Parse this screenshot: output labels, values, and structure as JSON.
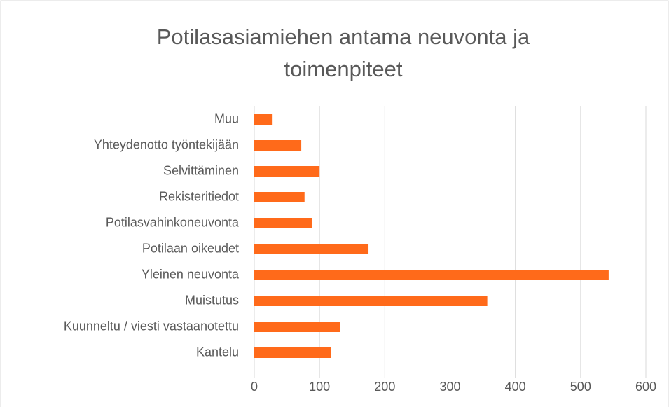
{
  "chart_data": {
    "type": "barh",
    "title": "Potilasasiamiehen antama neuvonta ja toimenpiteet",
    "categories": [
      "Muu",
      "Yhteydenotto työntekijään",
      "Selvittäminen",
      "Rekisteritiedot",
      "Potilasvahinkoneuvonta",
      "Potilaan oikeudet",
      "Yleinen neuvonta",
      "Muistutus",
      "Kuunneltu / viesti vastaanotettu",
      "Kantelu"
    ],
    "values": [
      27,
      72,
      100,
      77,
      88,
      175,
      543,
      357,
      132,
      118
    ],
    "color": "#ff6a1a",
    "xlim": [
      0,
      600
    ],
    "xticks": [
      0,
      100,
      200,
      300,
      400,
      500,
      600
    ],
    "grid": true
  }
}
